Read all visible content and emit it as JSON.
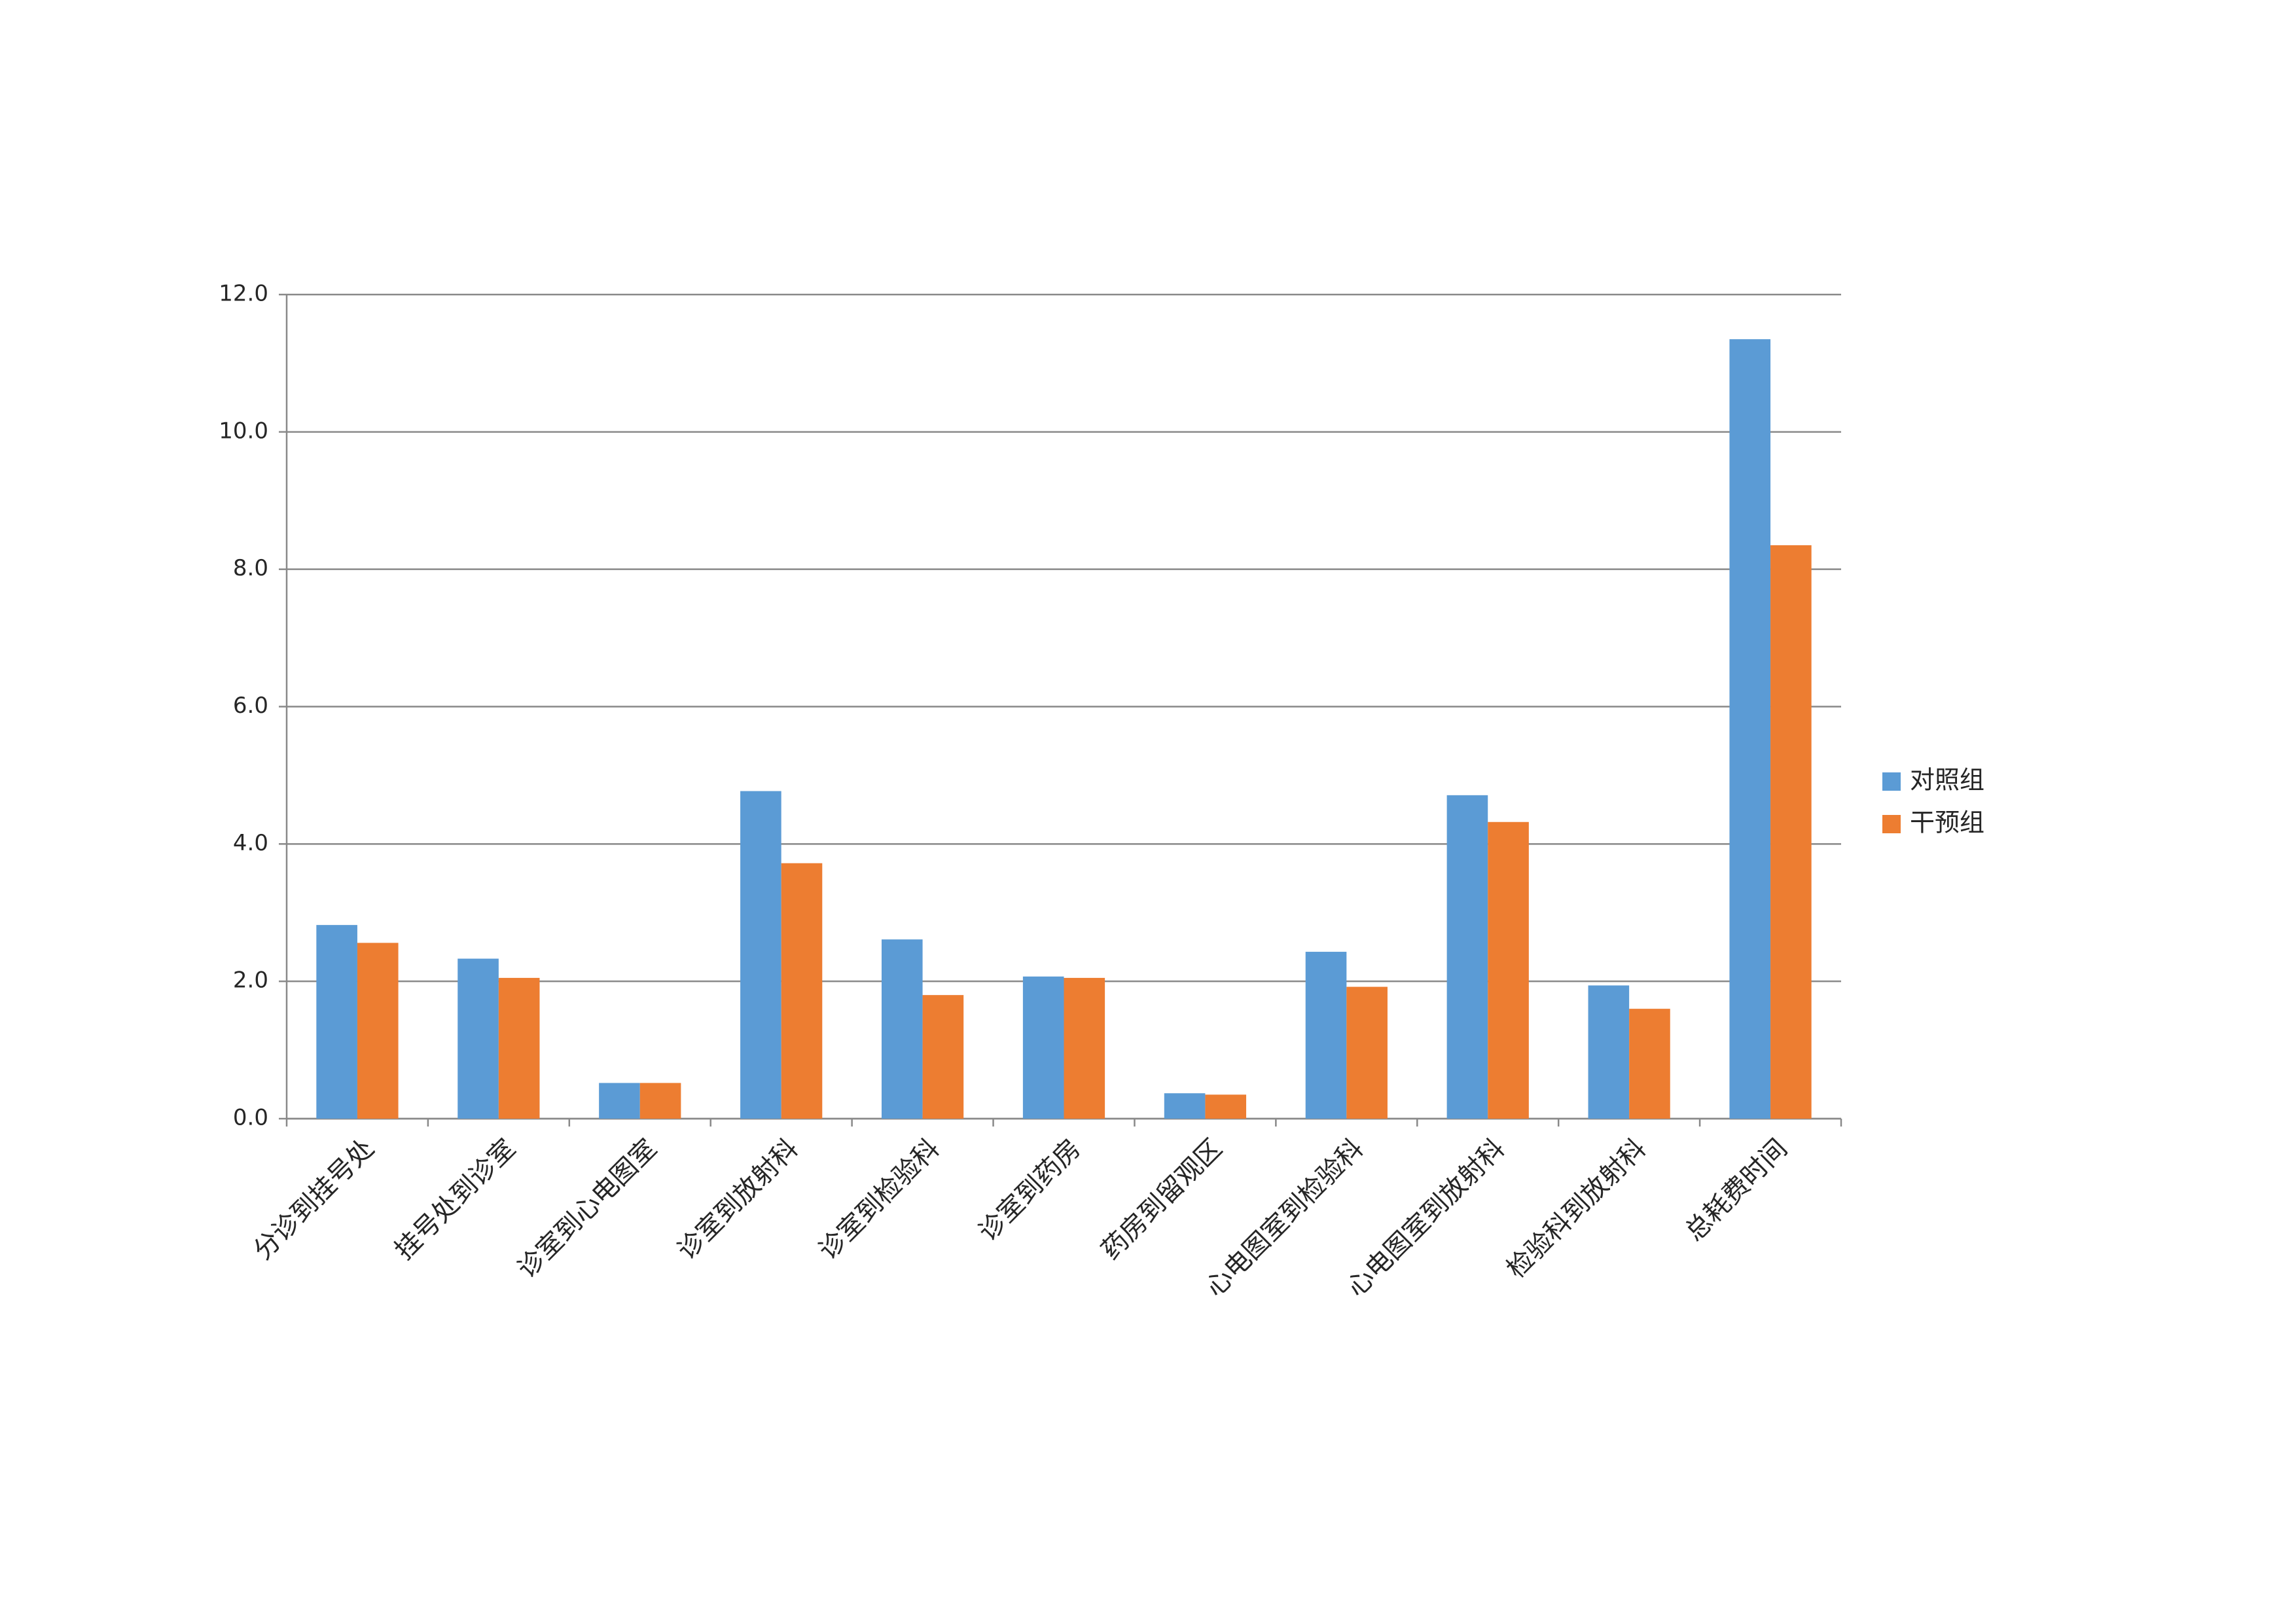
{
  "chart_data": {
    "type": "bar",
    "categories": [
      "分诊到挂号处",
      "挂号处到诊室",
      "诊室到心电图室",
      "诊室到放射科",
      "诊室到检验科",
      "诊室到药房",
      "药房到留观区",
      "心电图室到检验科",
      "心电图室到放射科",
      "检验科到放射科",
      "总耗费时间"
    ],
    "series": [
      {
        "name": "对照组",
        "color": "#5b9bd5",
        "values": [
          2.82,
          2.33,
          0.52,
          4.77,
          2.61,
          2.07,
          0.37,
          2.43,
          4.71,
          1.94,
          11.35
        ]
      },
      {
        "name": "干预组",
        "color": "#ed7d31",
        "values": [
          2.56,
          2.05,
          0.52,
          3.72,
          1.8,
          2.05,
          0.35,
          1.92,
          4.32,
          1.6,
          8.35
        ]
      }
    ],
    "ylim": [
      0,
      12
    ],
    "yticks": [
      {
        "value": 0,
        "label": "0.0"
      },
      {
        "value": 2,
        "label": "2.0"
      },
      {
        "value": 4,
        "label": "4.0"
      },
      {
        "value": 6,
        "label": "6.0"
      },
      {
        "value": 8,
        "label": "8.0"
      },
      {
        "value": 10,
        "label": "10.0"
      },
      {
        "value": 12,
        "label": "12.0"
      }
    ],
    "grid": true,
    "legend": "right"
  }
}
